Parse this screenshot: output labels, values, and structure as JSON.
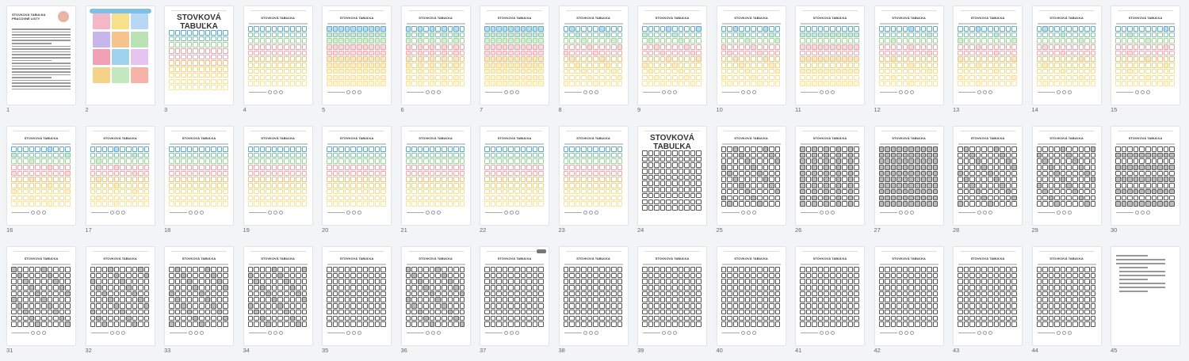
{
  "pages": [
    {
      "number": "1",
      "kind": "cover",
      "title": "STOVKOVÁ TABUĽKA\nPRACOVNÉ LISTY"
    },
    {
      "number": "2",
      "kind": "poster"
    },
    {
      "number": "3",
      "kind": "colored",
      "title": "STOVKOVÁ\nTABUĽKA",
      "big": true
    },
    {
      "number": "4",
      "kind": "colored",
      "title": "STOVKOVÁ TABUĽKA"
    },
    {
      "number": "5",
      "kind": "colored",
      "title": "STOVKOVÁ TABUĽKA",
      "shade": "full"
    },
    {
      "number": "6",
      "kind": "colored",
      "title": "STOVKOVÁ TABUĽKA",
      "shade": "cols"
    },
    {
      "number": "7",
      "kind": "colored",
      "title": "STOVKOVÁ TABUĽKA",
      "shade": "full"
    },
    {
      "number": "8",
      "kind": "colored",
      "title": "STOVKOVÁ TABUĽKA",
      "shade": "some"
    },
    {
      "number": "9",
      "kind": "colored",
      "title": "STOVKOVÁ TABUĽKA",
      "shade": "some"
    },
    {
      "number": "10",
      "kind": "colored",
      "title": "STOVKOVÁ TABUĽKA",
      "shade": "some"
    },
    {
      "number": "11",
      "kind": "colored",
      "title": "STOVKOVÁ TABUĽKA",
      "shade": "rows"
    },
    {
      "number": "12",
      "kind": "colored",
      "title": "STOVKOVÁ TABUĽKA",
      "shade": "pics"
    },
    {
      "number": "13",
      "kind": "colored",
      "title": "STOVKOVÁ TABUĽKA",
      "shade": "pics"
    },
    {
      "number": "14",
      "kind": "colored",
      "title": "STOVKOVÁ TABUĽKA",
      "shade": "pics"
    },
    {
      "number": "15",
      "kind": "colored",
      "title": "STOVKOVÁ TABUĽKA",
      "shade": "pics"
    },
    {
      "number": "16",
      "kind": "colored",
      "title": "STOVKOVÁ TABUĽKA",
      "shade": "pics"
    },
    {
      "number": "17",
      "kind": "colored",
      "title": "STOVKOVÁ TABUĽKA",
      "shade": "pics"
    },
    {
      "number": "18",
      "kind": "colored",
      "title": "STOVKOVÁ TABUĽKA"
    },
    {
      "number": "19",
      "kind": "colored",
      "title": "STOVKOVÁ TABUĽKA"
    },
    {
      "number": "20",
      "kind": "colored",
      "title": "STOVKOVÁ TABUĽKA"
    },
    {
      "number": "21",
      "kind": "colored",
      "title": "STOVKOVÁ TABUĽKA"
    },
    {
      "number": "22",
      "kind": "colored",
      "title": "STOVKOVÁ TABUĽKA"
    },
    {
      "number": "23",
      "kind": "colored",
      "title": "STOVKOVÁ TABUĽKA"
    },
    {
      "number": "24",
      "kind": "gray",
      "title": "STOVKOVÁ\nTABUĽKA",
      "big": true
    },
    {
      "number": "25",
      "kind": "gray",
      "title": "STOVKOVÁ TABUĽKA",
      "shade": "some"
    },
    {
      "number": "26",
      "kind": "gray",
      "title": "STOVKOVÁ TABUĽKA",
      "shade": "cols"
    },
    {
      "number": "27",
      "kind": "gray",
      "title": "STOVKOVÁ TABUĽKA",
      "shade": "full"
    },
    {
      "number": "28",
      "kind": "gray",
      "title": "STOVKOVÁ TABUĽKA",
      "shade": "some"
    },
    {
      "number": "29",
      "kind": "gray",
      "title": "STOVKOVÁ TABUĽKA",
      "shade": "some"
    },
    {
      "number": "30",
      "kind": "gray",
      "title": "STOVKOVÁ TABUĽKA",
      "shade": "rows"
    },
    {
      "number": "31",
      "kind": "gray",
      "title": "STOVKOVÁ TABUĽKA",
      "shade": "some"
    },
    {
      "number": "32",
      "kind": "gray",
      "title": "STOVKOVÁ TABUĽKA",
      "shade": "some"
    },
    {
      "number": "33",
      "kind": "gray",
      "title": "STOVKOVÁ TABUĽKA",
      "shade": "some"
    },
    {
      "number": "34",
      "kind": "gray",
      "title": "STOVKOVÁ TABUĽKA",
      "shade": "some"
    },
    {
      "number": "35",
      "kind": "gray",
      "title": "STOVKOVÁ TABUĽKA"
    },
    {
      "number": "36",
      "kind": "gray",
      "title": "STOVKOVÁ TABUĽKA",
      "shade": "some"
    },
    {
      "number": "37",
      "kind": "gray",
      "title": "STOVKOVÁ TABUĽKA",
      "badge": true
    },
    {
      "number": "38",
      "kind": "gray",
      "title": "STOVKOVÁ TABUĽKA"
    },
    {
      "number": "39",
      "kind": "gray",
      "title": "STOVKOVÁ TABUĽKA"
    },
    {
      "number": "40",
      "kind": "gray",
      "title": "STOVKOVÁ TABUĽKA"
    },
    {
      "number": "41",
      "kind": "gray",
      "title": "STOVKOVÁ TABUĽKA"
    },
    {
      "number": "42",
      "kind": "gray",
      "title": "STOVKOVÁ TABUĽKA"
    },
    {
      "number": "43",
      "kind": "gray",
      "title": "STOVKOVÁ TABUĽKA"
    },
    {
      "number": "44",
      "kind": "gray",
      "title": "STOVKOVÁ TABUĽKA"
    },
    {
      "number": "45",
      "kind": "text"
    }
  ],
  "row_colors": [
    "#5aa9d6",
    "#7cc7a4",
    "#9ed39a",
    "#e8a2a8",
    "#f0a9b0",
    "#f2c07e",
    "#f6d27a",
    "#f7dc86",
    "#f8e08e",
    "#f9e59a"
  ],
  "poster_colors": [
    "#f4b7c8",
    "#f6e08a",
    "#b7d7f2",
    "#c9b6e8",
    "#f6c38f",
    "#b9e3b5",
    "#f2a0b5",
    "#9fd2ec",
    "#e6c4f0",
    "#f4d28a",
    "#c3e8c0",
    "#f7b3a8"
  ]
}
